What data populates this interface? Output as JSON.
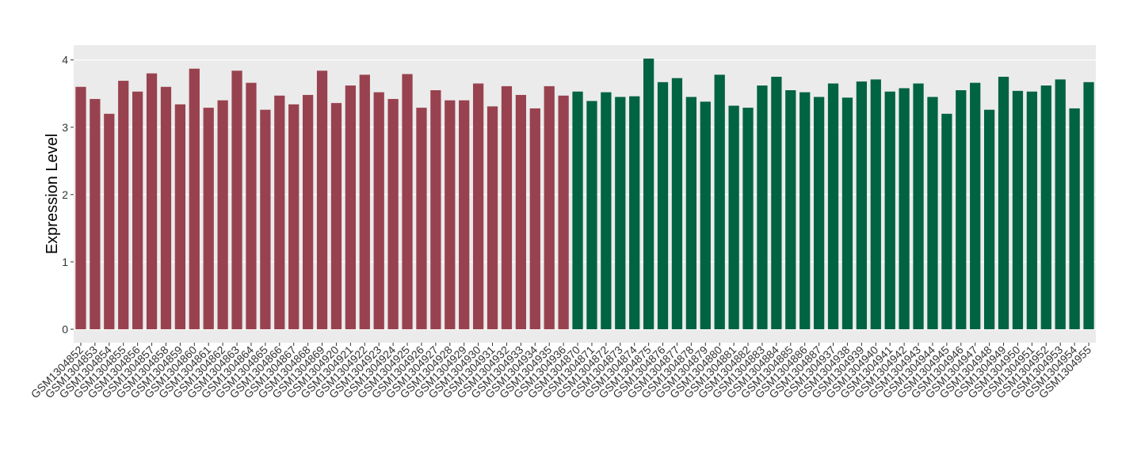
{
  "chart_data": {
    "type": "bar",
    "y_label": "Expression Level",
    "categories": [
      "GSM1304852",
      "GSM1304853",
      "GSM1304854",
      "GSM1304855",
      "GSM1304856",
      "GSM1304857",
      "GSM1304858",
      "GSM1304859",
      "GSM1304860",
      "GSM1304861",
      "GSM1304862",
      "GSM1304863",
      "GSM1304864",
      "GSM1304865",
      "GSM1304866",
      "GSM1304867",
      "GSM1304868",
      "GSM1304869",
      "GSM1304920",
      "GSM1304921",
      "GSM1304922",
      "GSM1304923",
      "GSM1304924",
      "GSM1304925",
      "GSM1304926",
      "GSM1304927",
      "GSM1304928",
      "GSM1304929",
      "GSM1304930",
      "GSM1304931",
      "GSM1304932",
      "GSM1304933",
      "GSM1304934",
      "GSM1304935",
      "GSM1304936",
      "GSM1304870",
      "GSM1304871",
      "GSM1304872",
      "GSM1304873",
      "GSM1304874",
      "GSM1304875",
      "GSM1304876",
      "GSM1304877",
      "GSM1304878",
      "GSM1304879",
      "GSM1304880",
      "GSM1304881",
      "GSM1304882",
      "GSM1304883",
      "GSM1304884",
      "GSM1304885",
      "GSM1304886",
      "GSM1304887",
      "GSM1304937",
      "GSM1304938",
      "GSM1304939",
      "GSM1304940",
      "GSM1304941",
      "GSM1304942",
      "GSM1304943",
      "GSM1304944",
      "GSM1304945",
      "GSM1304946",
      "GSM1304947",
      "GSM1304948",
      "GSM1304949",
      "GSM1304950",
      "GSM1304951",
      "GSM1304952",
      "GSM1304953",
      "GSM1304954",
      "GSM1304955"
    ],
    "series": [
      {
        "color": "#99424f",
        "values": [
          3.6,
          3.42,
          3.2,
          3.69,
          3.53,
          3.8,
          3.6,
          3.34,
          3.87,
          3.29,
          3.4,
          3.84,
          3.66,
          3.26,
          3.47,
          3.34,
          3.48,
          3.84,
          3.36,
          3.62,
          3.78,
          3.52,
          3.42,
          3.79,
          3.29,
          3.55,
          3.4,
          3.4,
          3.65,
          3.31,
          3.61,
          3.48,
          3.28,
          3.61,
          3.47,
          null,
          null,
          null,
          null,
          null,
          null,
          null,
          null,
          null,
          null,
          null,
          null,
          null,
          null,
          null,
          null,
          null,
          null,
          null,
          null,
          null,
          null,
          null,
          null,
          null,
          null,
          null,
          null,
          null,
          null,
          null,
          null,
          null,
          null,
          null,
          null,
          null
        ]
      },
      {
        "color": "#006342",
        "values": [
          null,
          null,
          null,
          null,
          null,
          null,
          null,
          null,
          null,
          null,
          null,
          null,
          null,
          null,
          null,
          null,
          null,
          null,
          null,
          null,
          null,
          null,
          null,
          null,
          null,
          null,
          null,
          null,
          null,
          null,
          null,
          null,
          null,
          null,
          null,
          3.53,
          3.39,
          3.52,
          3.45,
          3.46,
          4.02,
          3.67,
          3.73,
          3.45,
          3.38,
          3.78,
          3.32,
          3.29,
          3.62,
          3.75,
          3.55,
          3.52,
          3.45,
          3.65,
          3.44,
          3.68,
          3.71,
          3.53,
          3.58,
          3.65,
          3.45,
          3.2,
          3.55,
          3.66,
          3.26,
          3.75,
          3.54,
          3.53,
          3.62,
          3.71,
          3.28,
          3.67
        ]
      }
    ],
    "ylim": [
      -0.2,
      4.22
    ],
    "yticks": [
      0,
      1,
      2,
      3,
      4
    ],
    "grid": true
  }
}
